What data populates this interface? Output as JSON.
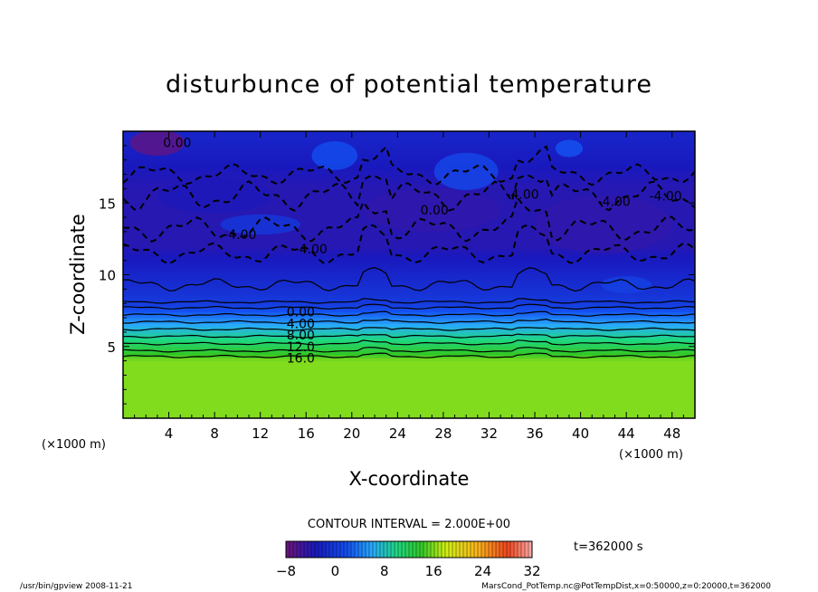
{
  "chart_data": {
    "type": "heatmap",
    "title": "disturbunce of potential temperature",
    "xlabel": "X-coordinate",
    "ylabel": "Z-coordinate",
    "x_unit": "(×1000 m)",
    "y_unit": "(×1000 m)",
    "xlim": [
      0,
      50
    ],
    "ylim": [
      0,
      20
    ],
    "x_ticks": [
      "4",
      "8",
      "12",
      "16",
      "20",
      "24",
      "28",
      "32",
      "36",
      "40",
      "44",
      "48"
    ],
    "y_ticks": [
      "5",
      "10",
      "15"
    ],
    "contour_interval_text": "CONTOUR INTERVAL = 2.000E+00",
    "colorbar": {
      "min": -8,
      "max": 32,
      "ticks": [
        "−8",
        "0",
        "8",
        "16",
        "24",
        "32"
      ]
    },
    "contour_labels": [
      "0.00",
      "4.00",
      "8.00",
      "12.0",
      "16.0",
      "0.00",
      "-4.00",
      "-4.00",
      "0.00",
      "-4.00",
      "-4.00",
      "-4.00"
    ],
    "profile": {
      "z_km": [
        0,
        3,
        4,
        4.5,
        5,
        5.5,
        6,
        6.5,
        7,
        7.5,
        8,
        9,
        12,
        16,
        20
      ],
      "value": [
        16,
        16,
        16,
        14,
        12,
        10,
        8,
        6,
        4,
        2,
        0,
        -1,
        -4,
        -4,
        -2
      ]
    },
    "time_label": "t=362000 s"
  },
  "footer": {
    "left": "/usr/bin/gpview   2008-11-21",
    "right": "MarsCond_PotTemp.nc@PotTempDist,x=0:50000,z=0:20000,t=362000"
  }
}
